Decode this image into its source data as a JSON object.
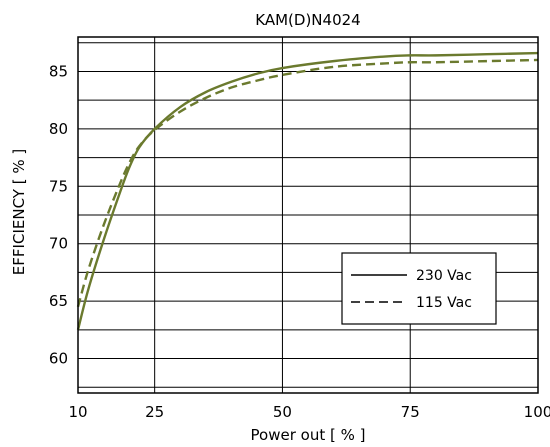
{
  "chart_data": {
    "type": "line",
    "title": "KAM(D)N4024",
    "xlabel": "Power  out [ % ]",
    "ylabel": "EFFICIENCY [ % ]",
    "xlim": [
      10,
      100
    ],
    "ylim": [
      57,
      88
    ],
    "x_ticks": [
      10,
      25,
      50,
      75,
      100
    ],
    "x_tick_labels": [
      "10",
      "25",
      "50",
      "75",
      "100"
    ],
    "x_grid": [
      10,
      25,
      50,
      75,
      100
    ],
    "y_ticks": [
      60,
      65,
      70,
      75,
      80,
      85
    ],
    "y_tick_labels": [
      "60",
      "65",
      "70",
      "75",
      "80",
      "85"
    ],
    "y_grid": [
      57.5,
      60,
      62.5,
      65,
      67.5,
      70,
      72.5,
      75,
      77.5,
      80,
      82.5,
      85,
      87.5
    ],
    "grid": true,
    "legend_position": "lower-right",
    "series": [
      {
        "name": "230 Vac",
        "style": "solid",
        "color": "#6b7a2e",
        "x": [
          10,
          12,
          15,
          18,
          20,
          22,
          25,
          30,
          35,
          40,
          45,
          50,
          60,
          70,
          75,
          80,
          90,
          100
        ],
        "y": [
          62.5,
          66.0,
          70.3,
          74.2,
          76.6,
          78.4,
          80.0,
          81.9,
          83.2,
          84.1,
          84.8,
          85.3,
          85.9,
          86.3,
          86.4,
          86.4,
          86.5,
          86.6
        ]
      },
      {
        "name": "115 Vac",
        "style": "dashed",
        "color": "#6b7a2e",
        "x": [
          10,
          12,
          15,
          18,
          20,
          22,
          25,
          30,
          35,
          40,
          45,
          50,
          60,
          70,
          75,
          80,
          90,
          100
        ],
        "y": [
          64.5,
          67.7,
          71.6,
          75.0,
          77.0,
          78.5,
          79.9,
          81.5,
          82.7,
          83.6,
          84.2,
          84.7,
          85.4,
          85.7,
          85.8,
          85.8,
          85.9,
          86.0
        ]
      }
    ]
  }
}
